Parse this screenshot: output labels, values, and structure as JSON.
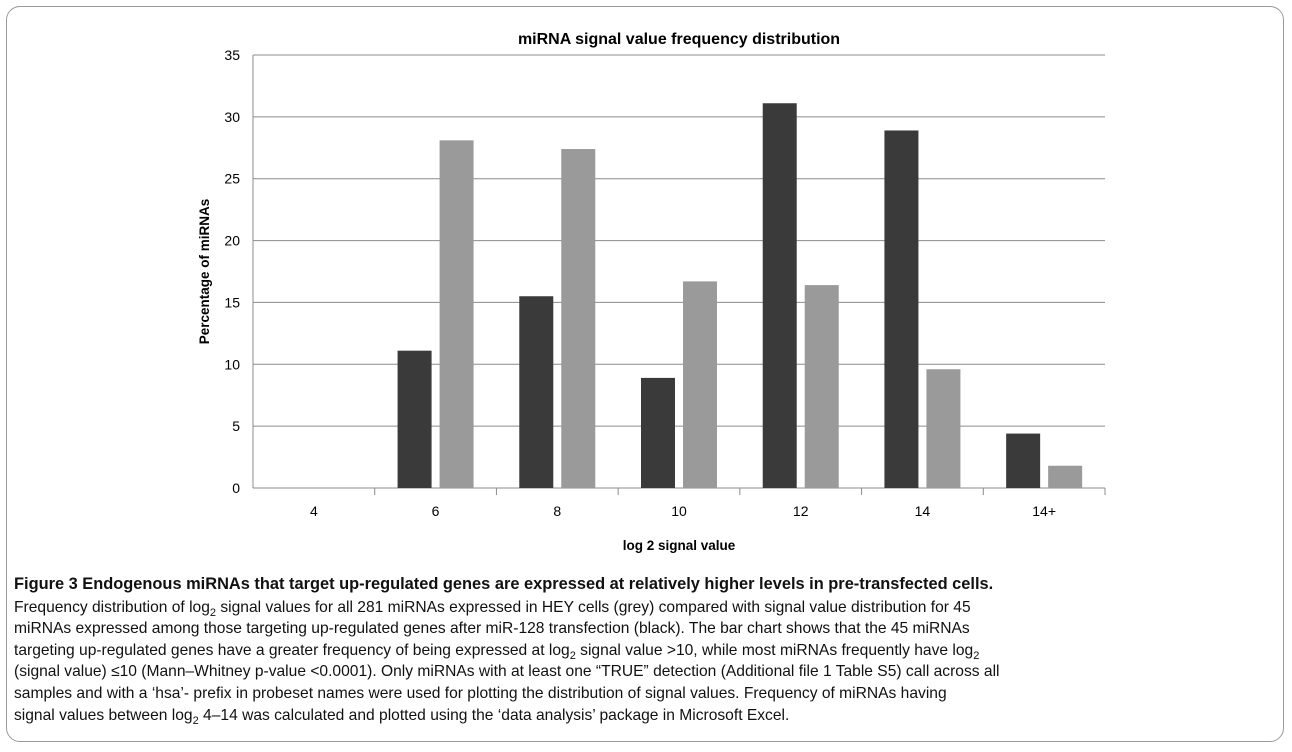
{
  "chart_data": {
    "type": "bar",
    "title": "miRNA signal value frequency distribution",
    "xlabel": "log 2 signal value",
    "ylabel": "Percentage of miRNAs",
    "categories": [
      "4",
      "6",
      "8",
      "10",
      "12",
      "14",
      "14+"
    ],
    "ylim": [
      0,
      35
    ],
    "yticks": [
      0,
      5,
      10,
      15,
      20,
      25,
      30,
      35
    ],
    "grid": true,
    "legend": "none",
    "series": [
      {
        "values": [
          0,
          11.1,
          15.5,
          8.9,
          31.1,
          28.9,
          4.4
        ],
        "color": "#3a3a3a"
      },
      {
        "values": [
          0,
          28.1,
          27.4,
          16.7,
          16.4,
          9.6,
          1.8
        ],
        "color": "#9a9a9a"
      }
    ]
  },
  "caption": {
    "heading": "Figure 3 Endogenous miRNAs that target up-regulated genes are expressed at relatively higher levels in pre-transfected cells.",
    "l1_a": "Frequency distribution of log",
    "l1_sub": "2",
    "l1_b": " signal values for all 281 miRNAs expressed in HEY cells (grey) compared with signal value distribution for 45",
    "l2": "miRNAs expressed among those targeting up-regulated genes after miR-128 transfection (black). The bar chart shows that the 45 miRNAs",
    "l3_a": "targeting up-regulated genes have a greater frequency of being expressed at log",
    "l3_sub1": "2",
    "l3_b": " signal value >10, while most miRNAs frequently have log",
    "l3_sub2": "2",
    "l4": "(signal value) ≤10 (Mann–Whitney p-value <0.0001). Only miRNAs with at least one “TRUE” detection (Additional file 1 Table S5) call across all",
    "l5": "samples and with a ‘hsa’- prefix in probeset names were used for plotting the distribution of signal values. Frequency of miRNAs having",
    "l6_a": "signal values between log",
    "l6_sub": "2",
    "l6_b": " 4–14 was calculated and plotted using the ‘data analysis’ package in Microsoft Excel."
  }
}
